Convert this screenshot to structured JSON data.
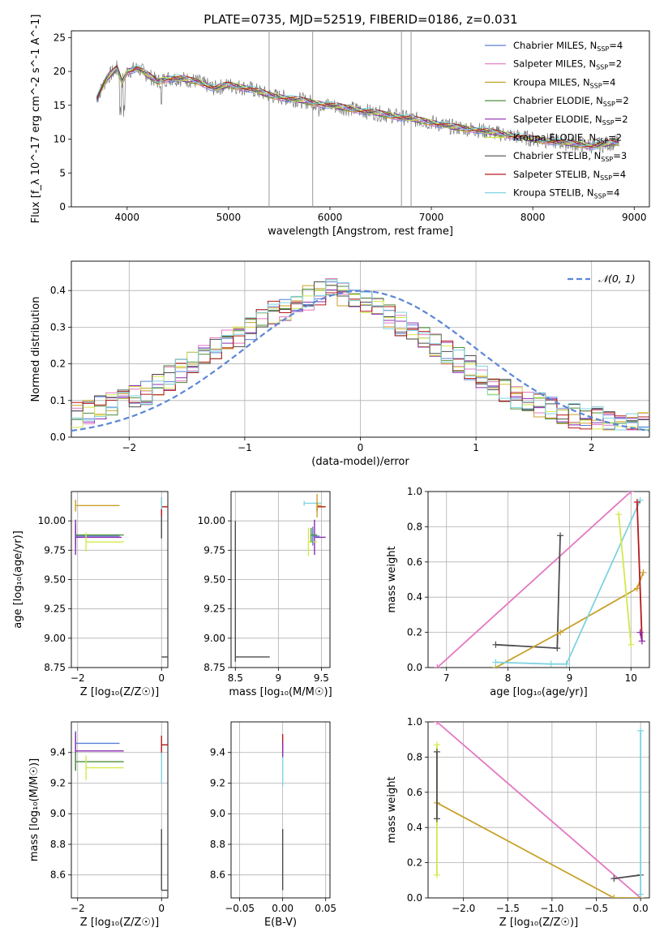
{
  "figure": {
    "title": "PLATE=0735, MJD=52519, FIBERID=0186, z=0.031"
  },
  "legend_colors": [
    "#5b7fd6",
    "#e377c2",
    "#c8a12a",
    "#4f8f3a",
    "#8e2cb0",
    "#d4e84a",
    "#4d4d4d",
    "#b51a1a",
    "#7fd3e0"
  ],
  "chart_data": [
    {
      "id": "spectrum",
      "type": "line",
      "xlabel": "wavelength [Angstrom, rest frame]",
      "ylabel": "Flux [f_λ 10^-17 erg cm^-2 s^-1 A^-1]",
      "xlim": [
        3450,
        9150
      ],
      "ylim": [
        0,
        26
      ],
      "xticks": [
        4000,
        5000,
        6000,
        7000,
        8000,
        9000
      ],
      "yticks": [
        0,
        5,
        10,
        15,
        20,
        25
      ],
      "grid": false,
      "legend_position": "top-right",
      "data_curve": {
        "x": [
          3700,
          3800,
          3900,
          3950,
          4000,
          4100,
          4200,
          4300,
          4400,
          4500,
          4700,
          4860,
          5000,
          5200,
          5400,
          5600,
          5800,
          6000,
          6200,
          6400,
          6600,
          6800,
          7000,
          7200,
          7400,
          7600,
          7800,
          8000,
          8200,
          8400,
          8600,
          8800
        ],
        "y": [
          16,
          19,
          20.5,
          18.5,
          20,
          20.5,
          19.5,
          18.5,
          19,
          19,
          18.5,
          17.5,
          18,
          17.5,
          16.5,
          16,
          15.5,
          15,
          14.5,
          14,
          13.5,
          13,
          12.5,
          11.8,
          11.5,
          11,
          10.5,
          10,
          9.7,
          9.3,
          9,
          9.5
        ]
      },
      "series": [
        {
          "name": "Chabrier MILES, N_SSP=4",
          "label_main": "Chabrier MILES, N",
          "label_sub": "SSP",
          "label_tail": "=4",
          "color": "#5b7fd6"
        },
        {
          "name": "Salpeter MILES, N_SSP=2",
          "label_main": "Salpeter MILES, N",
          "label_sub": "SSP",
          "label_tail": "=2",
          "color": "#e377c2"
        },
        {
          "name": "Kroupa MILES, N_SSP=4",
          "label_main": "Kroupa MILES, N",
          "label_sub": "SSP",
          "label_tail": "=4",
          "color": "#c8a12a"
        },
        {
          "name": "Chabrier ELODIE, N_SSP=2",
          "label_main": "Chabrier ELODIE, N",
          "label_sub": "SSP",
          "label_tail": "=2",
          "color": "#4f8f3a"
        },
        {
          "name": "Salpeter ELODIE, N_SSP=2",
          "label_main": "Salpeter ELODIE, N",
          "label_sub": "SSP",
          "label_tail": "=2",
          "color": "#8e2cb0"
        },
        {
          "name": "Kroupa ELODIE, N_SSP=2",
          "label_main": "Kroupa ELODIE, N",
          "label_sub": "SSP",
          "label_tail": "=2",
          "color": "#d4e84a"
        },
        {
          "name": "Chabrier STELIB, N_SSP=3",
          "label_main": "Chabrier STELIB, N",
          "label_sub": "SSP",
          "label_tail": "=3",
          "color": "#4d4d4d"
        },
        {
          "name": "Salpeter STELIB, N_SSP=4",
          "label_main": "Salpeter STELIB, N",
          "label_sub": "SSP",
          "label_tail": "=4",
          "color": "#b51a1a"
        },
        {
          "name": "Kroupa STELIB, N_SSP=4",
          "label_main": "Kroupa STELIB, N",
          "label_sub": "SSP",
          "label_tail": "=4",
          "color": "#7fd3e0"
        }
      ]
    },
    {
      "id": "residuals",
      "type": "histogram",
      "xlabel": "(data-model)/error",
      "ylabel": "Normed distribution",
      "xlim": [
        -2.5,
        2.5
      ],
      "ylim": [
        0,
        0.48
      ],
      "xticks": [
        -2,
        -1,
        0,
        1,
        2
      ],
      "yticks": [
        0.0,
        0.1,
        0.2,
        0.3,
        0.4
      ],
      "grid": true,
      "legend_position": "top-right",
      "legend_label": "𝒩(0, 1)",
      "reference_curve": "standard normal density",
      "bin_edges_start": -2.5,
      "bin_width": 0.1,
      "mean_hist": [
        0.06,
        0.07,
        0.08,
        0.09,
        0.1,
        0.11,
        0.12,
        0.14,
        0.16,
        0.18,
        0.2,
        0.22,
        0.24,
        0.26,
        0.28,
        0.3,
        0.32,
        0.34,
        0.35,
        0.37,
        0.38,
        0.39,
        0.4,
        0.39,
        0.38,
        0.37,
        0.35,
        0.33,
        0.31,
        0.29,
        0.27,
        0.25,
        0.23,
        0.21,
        0.19,
        0.17,
        0.15,
        0.13,
        0.11,
        0.1,
        0.09,
        0.08,
        0.07,
        0.06,
        0.055,
        0.05,
        0.045,
        0.04,
        0.035,
        0.04
      ]
    },
    {
      "id": "age_vs_Z",
      "type": "errorbar",
      "xlabel": "Z [log₁₀(Z/Z☉)]",
      "ylabel": "age  [log₁₀(age/yr)]",
      "xlim": [
        -2.15,
        0.15
      ],
      "ylim": [
        8.75,
        10.25
      ],
      "xticks": [
        -2,
        0
      ],
      "yticks": [
        8.75,
        9.0,
        9.25,
        9.5,
        9.75,
        10.0
      ],
      "ytick_labels": [
        "8.75",
        "9.00",
        "9.25",
        "9.50",
        "9.75",
        "10.00"
      ],
      "points": [
        {
          "series": 0,
          "x": -2.05,
          "y": 9.87,
          "xerr_to": -1.0,
          "yerr": 0.1
        },
        {
          "series": 3,
          "x": -2.05,
          "y": 9.88,
          "xerr_to": -0.9,
          "yerr": 0.08
        },
        {
          "series": 4,
          "x": -2.05,
          "y": 9.86,
          "xerr_to": -0.95,
          "yerr": 0.15
        },
        {
          "series": 5,
          "x": -1.8,
          "y": 9.82,
          "xerr_to": -0.9,
          "yerr": 0.08
        },
        {
          "series": 2,
          "x": -2.05,
          "y": 10.13,
          "xerr_to": -1.0,
          "yerr": 0.05
        },
        {
          "series": 6,
          "x": 0.0,
          "y": 8.84,
          "xerr_to": 0.25,
          "yerr": 0.0
        },
        {
          "series": 6,
          "x": 0.0,
          "y": 10.0,
          "xerr_to": 0.0,
          "yerr": 0.15
        },
        {
          "series": 7,
          "x": 0.0,
          "y": 10.12,
          "xerr_to": 0.25,
          "yerr": 0.08
        },
        {
          "series": 8,
          "x": 0.0,
          "y": 10.15,
          "xerr_to": 0.0,
          "yerr": 0.05
        }
      ]
    },
    {
      "id": "age_vs_mass",
      "type": "errorbar",
      "xlabel": "mass [log₁₀(M/M☉)]",
      "ylabel": "",
      "xlim": [
        8.45,
        9.6
      ],
      "ylim": [
        8.75,
        10.25
      ],
      "xticks": [
        8.5,
        9.0,
        9.5
      ],
      "yticks": [
        8.75,
        9.0,
        9.25,
        9.5,
        9.75,
        10.0
      ],
      "ytick_labels": [
        "8.75",
        "9.00",
        "9.25",
        "9.50",
        "9.75",
        "10.00"
      ],
      "points": [
        {
          "series": 6,
          "x": 8.5,
          "y": 8.84,
          "xerr_to": 8.9,
          "yerr": 0.0
        },
        {
          "series": 6,
          "x": 8.5,
          "y": 9.4,
          "xerr_to": 8.5,
          "yerr": 0.6
        },
        {
          "series": 8,
          "x": 9.3,
          "y": 10.15,
          "xerr_to": 9.5,
          "yerr": 0.02
        },
        {
          "series": 7,
          "x": 9.45,
          "y": 10.12,
          "xerr_to": 9.55,
          "yerr": 0.04
        },
        {
          "series": 4,
          "x": 9.42,
          "y": 9.86,
          "xerr_to": 9.55,
          "yerr": 0.15
        },
        {
          "series": 5,
          "x": 9.35,
          "y": 9.82,
          "xerr_to": 9.45,
          "yerr": 0.12
        },
        {
          "series": 0,
          "x": 9.4,
          "y": 9.87,
          "xerr_to": 9.48,
          "yerr": 0.08
        },
        {
          "series": 3,
          "x": 9.38,
          "y": 9.88,
          "xerr_to": 9.45,
          "yerr": 0.06
        },
        {
          "series": 2,
          "x": 9.45,
          "y": 10.13,
          "xerr_to": 9.5,
          "yerr": 0.1
        }
      ]
    },
    {
      "id": "massweight_vs_age",
      "type": "line",
      "xlabel": "age  [log₁₀(age/yr)]",
      "ylabel": "mass weight",
      "xlim": [
        6.7,
        10.3
      ],
      "ylim": [
        0,
        1
      ],
      "xticks": [
        7,
        8,
        9,
        10
      ],
      "yticks": [
        0.0,
        0.2,
        0.4,
        0.6,
        0.8,
        1.0
      ],
      "grid": true,
      "lines": [
        {
          "series": 1,
          "x": [
            6.85,
            10.0
          ],
          "y": [
            0.0,
            1.0
          ]
        },
        {
          "series": 6,
          "x": [
            7.8,
            8.8,
            8.85
          ],
          "y": [
            0.13,
            0.11,
            0.75
          ]
        },
        {
          "series": 2,
          "x": [
            7.8,
            8.85,
            10.1,
            10.2
          ],
          "y": [
            0.0,
            0.2,
            0.45,
            0.54
          ]
        },
        {
          "series": 8,
          "x": [
            7.8,
            8.7,
            8.95,
            10.15
          ],
          "y": [
            0.03,
            0.02,
            0.02,
            0.95
          ]
        },
        {
          "series": 5,
          "x": [
            9.8,
            10.0
          ],
          "y": [
            0.87,
            0.13
          ]
        },
        {
          "series": 7,
          "x": [
            10.1,
            10.18
          ],
          "y": [
            0.94,
            0.15
          ]
        },
        {
          "series": 4,
          "x": [
            10.15,
            10.18
          ],
          "y": [
            0.2,
            0.15
          ]
        }
      ]
    },
    {
      "id": "mass_vs_Z",
      "type": "errorbar",
      "xlabel": "Z [log₁₀(Z/Z☉)]",
      "ylabel": "mass [log₁₀(M/M☉)]",
      "xlim": [
        -2.15,
        0.15
      ],
      "ylim": [
        8.45,
        9.6
      ],
      "xticks": [
        -2,
        0
      ],
      "yticks": [
        8.6,
        8.8,
        9.0,
        9.2,
        9.4
      ],
      "points": [
        {
          "series": 0,
          "x": -2.05,
          "y": 9.46,
          "xerr_to": -1.0,
          "yerr": 0.08
        },
        {
          "series": 4,
          "x": -2.05,
          "y": 9.41,
          "xerr_to": -0.9,
          "yerr": 0.12
        },
        {
          "series": 3,
          "x": -2.05,
          "y": 9.34,
          "xerr_to": -0.9,
          "yerr": 0.06
        },
        {
          "series": 5,
          "x": -1.8,
          "y": 9.3,
          "xerr_to": -0.9,
          "yerr": 0.08
        },
        {
          "series": 6,
          "x": 0.0,
          "y": 8.5,
          "xerr_to": 0.25,
          "yerr": 0.0
        },
        {
          "series": 6,
          "x": 0.0,
          "y": 8.7,
          "xerr_to": 0.0,
          "yerr": 0.2
        },
        {
          "series": 7,
          "x": 0.0,
          "y": 9.45,
          "xerr_to": 0.25,
          "yerr": 0.06
        },
        {
          "series": 8,
          "x": 0.0,
          "y": 9.3,
          "xerr_to": 0.0,
          "yerr": 0.1
        }
      ]
    },
    {
      "id": "mass_vs_ebv",
      "type": "errorbar",
      "xlabel": "E(B-V)",
      "ylabel": "",
      "xlim": [
        -0.06,
        0.055
      ],
      "ylim": [
        8.45,
        9.6
      ],
      "xticks": [
        -0.05,
        0.0,
        0.05
      ],
      "xtick_labels": [
        "−0.05",
        "0.00",
        "0.05"
      ],
      "yticks": [
        8.6,
        8.8,
        9.0,
        9.2,
        9.4
      ],
      "points": [
        {
          "series": 6,
          "x": 0.0,
          "y": 8.7,
          "xerr_to": 0.0,
          "yerr": 0.2
        },
        {
          "series": 7,
          "x": 0.0,
          "y": 9.46,
          "xerr_to": 0.0,
          "yerr": 0.06
        },
        {
          "series": 8,
          "x": 0.0,
          "y": 9.3,
          "xerr_to": 0.0,
          "yerr": 0.12
        },
        {
          "series": 4,
          "x": 0.0,
          "y": 9.42,
          "xerr_to": 0.0,
          "yerr": 0.05
        }
      ]
    },
    {
      "id": "massweight_vs_Z",
      "type": "line",
      "xlabel": "Z [log₁₀(Z/Z☉)]",
      "ylabel": "mass weight",
      "xlim": [
        -2.4,
        0.1
      ],
      "ylim": [
        0,
        1
      ],
      "xticks": [
        -2.0,
        -1.5,
        -1.0,
        -0.5,
        0.0
      ],
      "xtick_labels": [
        "−2.0",
        "−1.5",
        "−1.0",
        "−0.5",
        "0.0"
      ],
      "yticks": [
        0.0,
        0.2,
        0.4,
        0.6,
        0.8,
        1.0
      ],
      "grid": true,
      "lines": [
        {
          "series": 1,
          "x": [
            -2.3,
            0.0
          ],
          "y": [
            1.0,
            0.0
          ]
        },
        {
          "series": 2,
          "x": [
            -2.3,
            -0.3,
            0.0
          ],
          "y": [
            0.54,
            0.0,
            0.0
          ]
        },
        {
          "series": 6,
          "x": [
            -0.3,
            0.0
          ],
          "y": [
            0.11,
            0.13
          ]
        },
        {
          "series": 5,
          "x": [
            -2.3,
            -2.3
          ],
          "y": [
            0.13,
            0.87
          ]
        },
        {
          "series": 8,
          "x": [
            0.0,
            0.0
          ],
          "y": [
            0.02,
            0.95
          ]
        },
        {
          "series": 6,
          "x": [
            -2.3,
            -2.3
          ],
          "y": [
            0.45,
            0.83
          ]
        }
      ]
    }
  ]
}
